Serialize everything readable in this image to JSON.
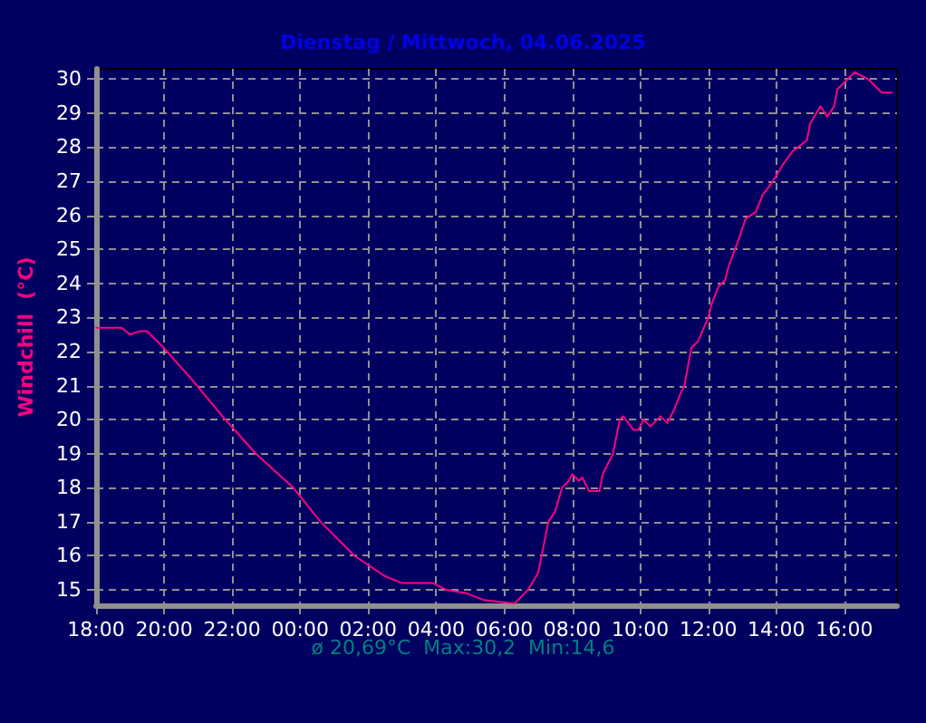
{
  "chart_data": {
    "type": "line",
    "title": "Dienstag / Mittwoch, 04.06.2025",
    "ylabel": "Windchill  (°C)",
    "annotations": [
      "ø 20,69°C  Max:30,2  Min:14,6"
    ],
    "x": [
      "2025-06-03T18:00",
      "2025-06-03T18:45",
      "2025-06-03T19:00",
      "2025-06-03T19:18",
      "2025-06-03T19:30",
      "2025-06-03T19:42",
      "2025-06-03T20:00",
      "2025-06-03T20:48",
      "2025-06-03T21:48",
      "2025-06-03T22:42",
      "2025-06-03T23:48",
      "2025-06-04T00:36",
      "2025-06-04T01:36",
      "2025-06-04T02:30",
      "2025-06-04T03:00",
      "2025-06-04T03:54",
      "2025-06-04T04:18",
      "2025-06-04T04:54",
      "2025-06-04T05:24",
      "2025-06-04T06:18",
      "2025-06-04T06:42",
      "2025-06-04T07:00",
      "2025-06-04T07:12",
      "2025-06-04T07:18",
      "2025-06-04T07:30",
      "2025-06-04T07:42",
      "2025-06-04T07:54",
      "2025-06-04T08:00",
      "2025-06-04T08:12",
      "2025-06-04T08:18",
      "2025-06-04T08:30",
      "2025-06-04T08:48",
      "2025-06-04T08:54",
      "2025-06-04T09:12",
      "2025-06-04T09:24",
      "2025-06-04T09:30",
      "2025-06-04T09:48",
      "2025-06-04T09:57",
      "2025-06-04T10:06",
      "2025-06-04T10:18",
      "2025-06-04T10:36",
      "2025-06-04T10:48",
      "2025-06-04T11:00",
      "2025-06-04T11:12",
      "2025-06-04T11:18",
      "2025-06-04T11:30",
      "2025-06-04T11:42",
      "2025-06-04T12:00",
      "2025-06-04T12:06",
      "2025-06-04T12:18",
      "2025-06-04T12:30",
      "2025-06-04T12:36",
      "2025-06-04T12:54",
      "2025-06-04T13:06",
      "2025-06-04T13:24",
      "2025-06-04T13:36",
      "2025-06-04T13:54",
      "2025-06-04T14:12",
      "2025-06-04T14:30",
      "2025-06-04T14:54",
      "2025-06-04T15:00",
      "2025-06-04T15:18",
      "2025-06-04T15:30",
      "2025-06-04T15:42",
      "2025-06-04T15:48",
      "2025-06-04T16:06",
      "2025-06-04T16:18",
      "2025-06-04T16:30",
      "2025-06-04T16:42",
      "2025-06-04T17:06",
      "2025-06-04T17:24"
    ],
    "series": [
      {
        "color": "#ff0080",
        "values": [
          22.7,
          22.7,
          22.5,
          22.6,
          22.6,
          22.4,
          22.1,
          21.2,
          20.0,
          19.0,
          18.0,
          17.0,
          16.0,
          15.4,
          15.2,
          15.2,
          15.0,
          14.9,
          14.7,
          14.6,
          15.0,
          15.5,
          16.5,
          17.0,
          17.3,
          18.0,
          18.2,
          18.4,
          18.2,
          18.3,
          17.9,
          17.9,
          18.4,
          19.0,
          20.0,
          20.1,
          19.7,
          19.7,
          20.0,
          19.8,
          20.1,
          19.9,
          20.3,
          20.8,
          21.0,
          22.1,
          22.3,
          23.0,
          23.4,
          23.9,
          24.1,
          24.5,
          25.3,
          25.9,
          26.1,
          26.6,
          27.0,
          27.5,
          27.9,
          28.2,
          28.7,
          29.2,
          28.9,
          29.2,
          29.7,
          30.0,
          30.2,
          30.1,
          30.0,
          29.6,
          29.6
        ]
      }
    ],
    "xlim": [
      "2025-06-03T18:00",
      "2025-06-04T17:33"
    ],
    "xticks": [
      {
        "value": "2025-06-03T18:00",
        "label": "18:00"
      },
      {
        "value": "2025-06-03T20:00",
        "label": "20:00"
      },
      {
        "value": "2025-06-03T22:00",
        "label": "22:00"
      },
      {
        "value": "2025-06-04T00:00",
        "label": "00:00"
      },
      {
        "value": "2025-06-04T02:00",
        "label": "02:00"
      },
      {
        "value": "2025-06-04T04:00",
        "label": "04:00"
      },
      {
        "value": "2025-06-04T06:00",
        "label": "06:00"
      },
      {
        "value": "2025-06-04T08:00",
        "label": "08:00"
      },
      {
        "value": "2025-06-04T10:00",
        "label": "10:00"
      },
      {
        "value": "2025-06-04T12:00",
        "label": "12:00"
      },
      {
        "value": "2025-06-04T14:00",
        "label": "14:00"
      },
      {
        "value": "2025-06-04T16:00",
        "label": "16:00"
      }
    ],
    "ylim": [
      14.55,
      30.3
    ],
    "yticks": [
      15,
      16,
      17,
      18,
      19,
      20,
      21,
      22,
      23,
      24,
      25,
      26,
      27,
      28,
      29,
      30
    ],
    "grid": true,
    "marker": "none",
    "line_style": "solid"
  }
}
